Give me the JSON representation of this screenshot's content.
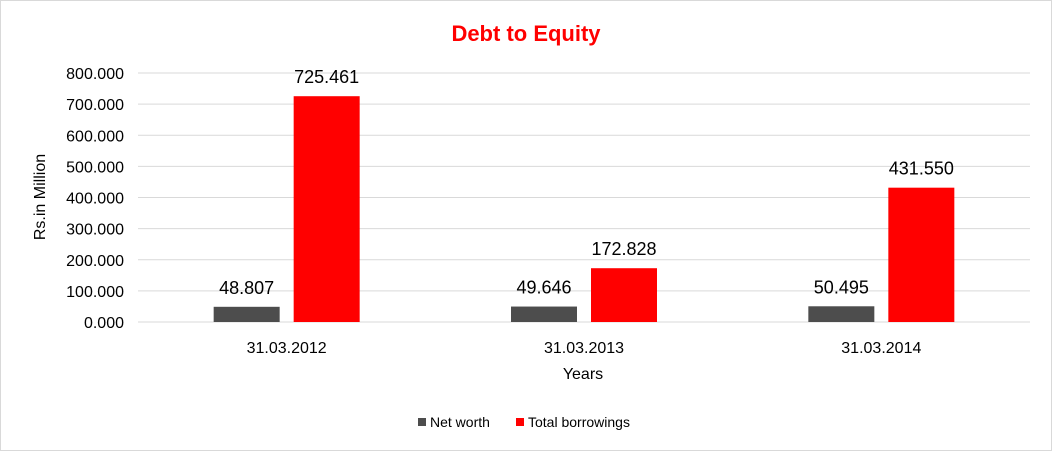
{
  "chart_data": {
    "type": "bar",
    "title": "Debt to Equity",
    "xlabel": "Years",
    "ylabel": "Rs.in Million",
    "categories": [
      "31.03.2012",
      "31.03.2013",
      "31.03.2014"
    ],
    "series": [
      {
        "name": "Net worth",
        "values": [
          48.807,
          49.646,
          50.495
        ],
        "labels": [
          "48.807",
          "49.646",
          "50.495"
        ],
        "color": "#4d4d4d"
      },
      {
        "name": "Total borrowings",
        "values": [
          725.461,
          172.828,
          431.55
        ],
        "labels": [
          "725.461",
          "172.828",
          "431.550"
        ],
        "color": "#ff0000"
      }
    ],
    "ylim": [
      0,
      800
    ],
    "yticks": [
      0,
      100,
      200,
      300,
      400,
      500,
      600,
      700,
      800
    ],
    "ytick_labels": [
      "0.000",
      "100.000",
      "200.000",
      "300.000",
      "400.000",
      "500.000",
      "600.000",
      "700.000",
      "800.000"
    ],
    "grid": true,
    "legend_position": "bottom",
    "title_color": "#ff0000"
  }
}
